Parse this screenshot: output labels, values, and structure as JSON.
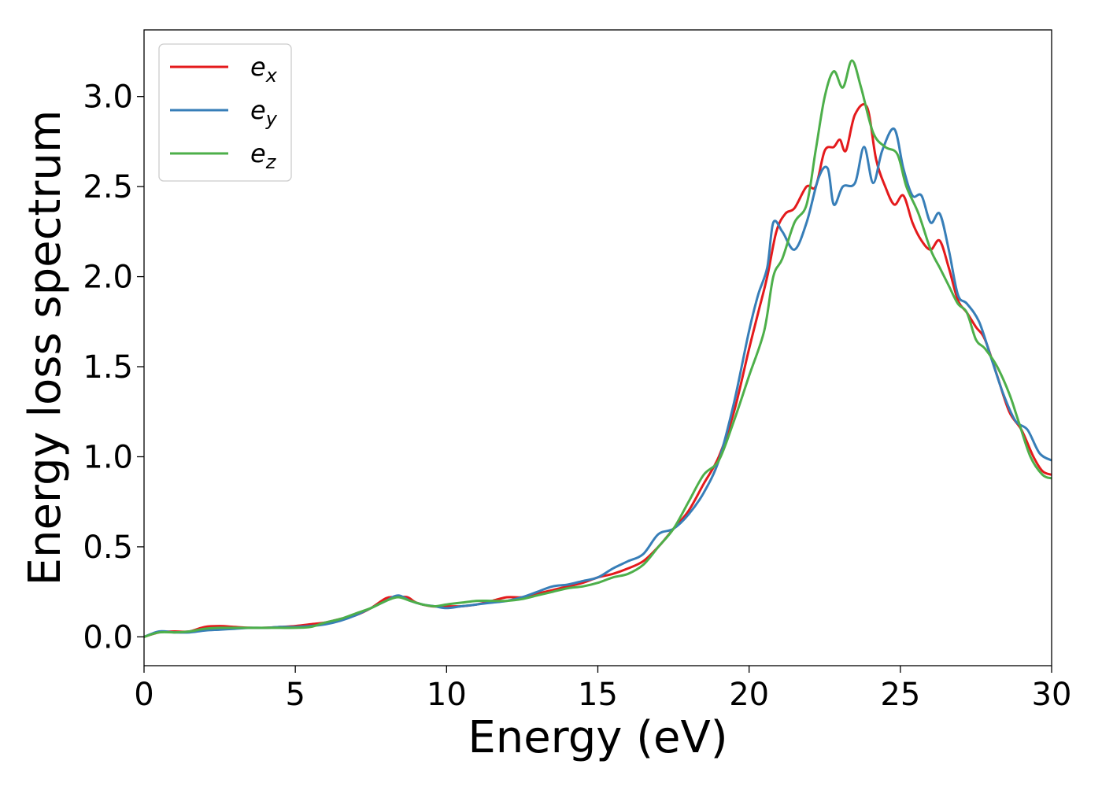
{
  "chart_data": {
    "type": "line",
    "title": "",
    "xlabel": "Energy (eV)",
    "ylabel": "Energy loss spectrum",
    "xlim": [
      0,
      30
    ],
    "ylim": [
      -0.16,
      3.37
    ],
    "xticks": [
      0,
      5,
      10,
      15,
      20,
      25,
      30
    ],
    "yticks": [
      0.0,
      0.5,
      1.0,
      1.5,
      2.0,
      2.5,
      3.0
    ],
    "xtick_labels": [
      "0",
      "5",
      "10",
      "15",
      "20",
      "25",
      "30"
    ],
    "ytick_labels": [
      "0.0",
      "0.5",
      "1.0",
      "1.5",
      "2.0",
      "2.5",
      "3.0"
    ],
    "grid": false,
    "legend_position": "top-left",
    "series": [
      {
        "name": "e",
        "sub": "x",
        "color": "#e41a1c",
        "points": [
          [
            0,
            0
          ],
          [
            0.5,
            0.025
          ],
          [
            1,
            0.03
          ],
          [
            1.5,
            0.03
          ],
          [
            2,
            0.055
          ],
          [
            2.5,
            0.06
          ],
          [
            3,
            0.055
          ],
          [
            3.5,
            0.05
          ],
          [
            4,
            0.05
          ],
          [
            4.5,
            0.055
          ],
          [
            5,
            0.06
          ],
          [
            5.5,
            0.07
          ],
          [
            6,
            0.08
          ],
          [
            6.5,
            0.1
          ],
          [
            7,
            0.12
          ],
          [
            7.5,
            0.16
          ],
          [
            8,
            0.215
          ],
          [
            8.3,
            0.22
          ],
          [
            8.7,
            0.22
          ],
          [
            9,
            0.19
          ],
          [
            9.5,
            0.17
          ],
          [
            10,
            0.17
          ],
          [
            10.5,
            0.17
          ],
          [
            11,
            0.18
          ],
          [
            11.5,
            0.2
          ],
          [
            12,
            0.22
          ],
          [
            12.5,
            0.22
          ],
          [
            13,
            0.24
          ],
          [
            13.5,
            0.26
          ],
          [
            14,
            0.28
          ],
          [
            14.5,
            0.3
          ],
          [
            15,
            0.33
          ],
          [
            15.5,
            0.35
          ],
          [
            16,
            0.38
          ],
          [
            16.5,
            0.42
          ],
          [
            17,
            0.5
          ],
          [
            17.5,
            0.6
          ],
          [
            18,
            0.7
          ],
          [
            18.5,
            0.85
          ],
          [
            19,
            1.0
          ],
          [
            19.5,
            1.25
          ],
          [
            20,
            1.6
          ],
          [
            20.3,
            1.8
          ],
          [
            20.6,
            2.0
          ],
          [
            20.9,
            2.25
          ],
          [
            21.2,
            2.35
          ],
          [
            21.5,
            2.38
          ],
          [
            21.9,
            2.5
          ],
          [
            22.2,
            2.5
          ],
          [
            22.5,
            2.7
          ],
          [
            22.8,
            2.72
          ],
          [
            23.0,
            2.76
          ],
          [
            23.2,
            2.7
          ],
          [
            23.5,
            2.9
          ],
          [
            23.9,
            2.94
          ],
          [
            24.2,
            2.65
          ],
          [
            24.5,
            2.5
          ],
          [
            24.8,
            2.4
          ],
          [
            25.1,
            2.45
          ],
          [
            25.4,
            2.3
          ],
          [
            25.7,
            2.2
          ],
          [
            26.0,
            2.15
          ],
          [
            26.3,
            2.2
          ],
          [
            26.6,
            2.05
          ],
          [
            26.9,
            1.87
          ],
          [
            27.2,
            1.8
          ],
          [
            27.5,
            1.72
          ],
          [
            27.8,
            1.65
          ],
          [
            28.2,
            1.45
          ],
          [
            28.6,
            1.25
          ],
          [
            29.0,
            1.15
          ],
          [
            29.4,
            1.0
          ],
          [
            29.7,
            0.92
          ],
          [
            30,
            0.9
          ]
        ]
      },
      {
        "name": "e",
        "sub": "y",
        "color": "#377eb8",
        "points": [
          [
            0,
            0
          ],
          [
            0.5,
            0.03
          ],
          [
            1,
            0.025
          ],
          [
            1.5,
            0.025
          ],
          [
            2,
            0.035
          ],
          [
            2.5,
            0.04
          ],
          [
            3,
            0.045
          ],
          [
            3.5,
            0.05
          ],
          [
            4,
            0.05
          ],
          [
            4.5,
            0.055
          ],
          [
            5,
            0.055
          ],
          [
            5.5,
            0.06
          ],
          [
            6,
            0.07
          ],
          [
            6.5,
            0.09
          ],
          [
            7,
            0.12
          ],
          [
            7.5,
            0.16
          ],
          [
            8,
            0.2
          ],
          [
            8.4,
            0.23
          ],
          [
            8.8,
            0.2
          ],
          [
            9.2,
            0.18
          ],
          [
            9.6,
            0.17
          ],
          [
            10,
            0.16
          ],
          [
            10.5,
            0.17
          ],
          [
            11,
            0.18
          ],
          [
            11.5,
            0.19
          ],
          [
            12,
            0.2
          ],
          [
            12.5,
            0.22
          ],
          [
            13,
            0.25
          ],
          [
            13.5,
            0.28
          ],
          [
            14,
            0.29
          ],
          [
            14.5,
            0.31
          ],
          [
            15,
            0.33
          ],
          [
            15.5,
            0.38
          ],
          [
            16,
            0.42
          ],
          [
            16.5,
            0.46
          ],
          [
            17,
            0.57
          ],
          [
            17.5,
            0.6
          ],
          [
            18,
            0.68
          ],
          [
            18.5,
            0.8
          ],
          [
            19,
            0.98
          ],
          [
            19.5,
            1.3
          ],
          [
            20,
            1.7
          ],
          [
            20.3,
            1.9
          ],
          [
            20.6,
            2.05
          ],
          [
            20.8,
            2.3
          ],
          [
            21.1,
            2.25
          ],
          [
            21.5,
            2.15
          ],
          [
            21.9,
            2.3
          ],
          [
            22.3,
            2.55
          ],
          [
            22.6,
            2.6
          ],
          [
            22.8,
            2.4
          ],
          [
            23.1,
            2.5
          ],
          [
            23.5,
            2.52
          ],
          [
            23.8,
            2.72
          ],
          [
            24.1,
            2.52
          ],
          [
            24.4,
            2.7
          ],
          [
            24.8,
            2.82
          ],
          [
            25.1,
            2.6
          ],
          [
            25.4,
            2.45
          ],
          [
            25.7,
            2.45
          ],
          [
            26.0,
            2.3
          ],
          [
            26.3,
            2.35
          ],
          [
            26.6,
            2.15
          ],
          [
            26.9,
            1.9
          ],
          [
            27.2,
            1.85
          ],
          [
            27.6,
            1.75
          ],
          [
            28.0,
            1.55
          ],
          [
            28.4,
            1.35
          ],
          [
            28.8,
            1.2
          ],
          [
            29.2,
            1.15
          ],
          [
            29.6,
            1.02
          ],
          [
            30,
            0.98
          ]
        ]
      },
      {
        "name": "e",
        "sub": "z",
        "color": "#4daf4a",
        "points": [
          [
            0,
            0
          ],
          [
            0.5,
            0.025
          ],
          [
            1,
            0.025
          ],
          [
            1.5,
            0.03
          ],
          [
            2,
            0.045
          ],
          [
            2.5,
            0.05
          ],
          [
            3,
            0.05
          ],
          [
            3.5,
            0.05
          ],
          [
            4,
            0.05
          ],
          [
            4.5,
            0.05
          ],
          [
            5,
            0.05
          ],
          [
            5.5,
            0.055
          ],
          [
            6,
            0.08
          ],
          [
            6.5,
            0.1
          ],
          [
            7,
            0.13
          ],
          [
            7.5,
            0.16
          ],
          [
            8,
            0.2
          ],
          [
            8.4,
            0.22
          ],
          [
            8.8,
            0.2
          ],
          [
            9.2,
            0.18
          ],
          [
            9.6,
            0.17
          ],
          [
            10,
            0.18
          ],
          [
            10.5,
            0.19
          ],
          [
            11,
            0.2
          ],
          [
            11.5,
            0.2
          ],
          [
            12,
            0.2
          ],
          [
            12.5,
            0.21
          ],
          [
            13,
            0.23
          ],
          [
            13.5,
            0.25
          ],
          [
            14,
            0.27
          ],
          [
            14.5,
            0.28
          ],
          [
            15,
            0.3
          ],
          [
            15.5,
            0.33
          ],
          [
            16,
            0.35
          ],
          [
            16.5,
            0.4
          ],
          [
            17,
            0.5
          ],
          [
            17.5,
            0.6
          ],
          [
            18,
            0.75
          ],
          [
            18.5,
            0.9
          ],
          [
            19,
            0.98
          ],
          [
            19.5,
            1.2
          ],
          [
            20,
            1.45
          ],
          [
            20.5,
            1.7
          ],
          [
            20.8,
            2.0
          ],
          [
            21.1,
            2.1
          ],
          [
            21.5,
            2.3
          ],
          [
            21.9,
            2.4
          ],
          [
            22.2,
            2.7
          ],
          [
            22.5,
            3.0
          ],
          [
            22.8,
            3.14
          ],
          [
            23.1,
            3.05
          ],
          [
            23.4,
            3.2
          ],
          [
            23.7,
            3.05
          ],
          [
            24.1,
            2.8
          ],
          [
            24.5,
            2.72
          ],
          [
            24.9,
            2.68
          ],
          [
            25.2,
            2.5
          ],
          [
            25.6,
            2.35
          ],
          [
            26.0,
            2.15
          ],
          [
            26.3,
            2.05
          ],
          [
            26.6,
            1.95
          ],
          [
            26.9,
            1.85
          ],
          [
            27.2,
            1.8
          ],
          [
            27.5,
            1.65
          ],
          [
            27.8,
            1.6
          ],
          [
            28.2,
            1.5
          ],
          [
            28.6,
            1.35
          ],
          [
            28.9,
            1.2
          ],
          [
            29.3,
            1.0
          ],
          [
            29.7,
            0.9
          ],
          [
            30,
            0.88
          ]
        ]
      }
    ]
  }
}
